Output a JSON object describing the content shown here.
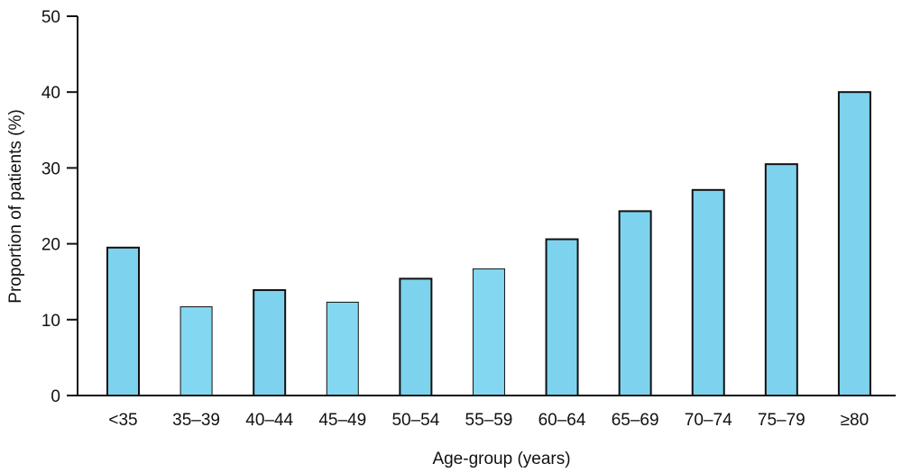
{
  "chart_data": {
    "type": "bar",
    "xlabel": "Age-group (years)",
    "ylabel": "Proportion of patients (%)",
    "ylim": [
      0,
      50
    ],
    "yticks": [
      0,
      10,
      20,
      30,
      40,
      50
    ],
    "grid": false,
    "categories": [
      "<35",
      "35–39",
      "40–44",
      "45–49",
      "50–54",
      "55–59",
      "60–64",
      "65–69",
      "70–74",
      "75–79",
      "≥80"
    ],
    "values": [
      19.5,
      11.7,
      13.9,
      12.3,
      15.4,
      16.7,
      20.6,
      24.3,
      27.1,
      30.5,
      40.0
    ],
    "colors": {
      "bar_fill": "#7dd3ee",
      "bar_fill_thin": "#84d7f0",
      "bar_stroke": "#111111",
      "axis": "#111111"
    }
  }
}
